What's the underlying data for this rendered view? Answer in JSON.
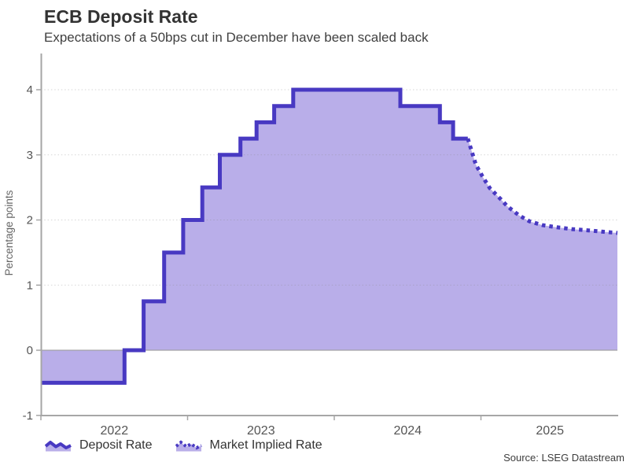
{
  "header": {
    "title": "ECB Deposit Rate",
    "subtitle": "Expectations of a 50bps cut in December have been scaled back"
  },
  "source": "Source: LSEG Datastream",
  "colors": {
    "line": "#4839c2",
    "fill": "#b9aee9",
    "axis": "#a6a6a6",
    "grid": "#8a8a8a",
    "zero_line": "#9e9e9e",
    "tick_text": "#555555",
    "axis_label_text": "#666666"
  },
  "legend": [
    {
      "label": "Deposit Rate",
      "style": "solid"
    },
    {
      "label": "Market Implied Rate",
      "style": "dotted"
    }
  ],
  "chart_data": {
    "type": "line",
    "title": "ECB Deposit Rate",
    "subtitle": "Expectations of a 50bps cut in December have been scaled back",
    "xlabel": "",
    "ylabel": "Percentage points",
    "xlim": [
      2022.0,
      2025.93
    ],
    "ylim": [
      -1,
      4.3
    ],
    "grid": "horizontal-dotted",
    "legend_position": "bottom",
    "y_ticks": [
      {
        "v": -1,
        "label": "-1"
      },
      {
        "v": 0,
        "label": "0"
      },
      {
        "v": 1,
        "label": "1"
      },
      {
        "v": 2,
        "label": "2"
      },
      {
        "v": 3,
        "label": "3"
      },
      {
        "v": 4,
        "label": "4"
      }
    ],
    "y_gridlines": [
      1,
      2,
      3,
      4
    ],
    "x_tick_boundaries": [
      2022,
      2023,
      2024,
      2025
    ],
    "x_year_labels": [
      {
        "t": 2022.5,
        "label": "2022"
      },
      {
        "t": 2023.5,
        "label": "2023"
      },
      {
        "t": 2024.5,
        "label": "2024"
      },
      {
        "t": 2025.47,
        "label": "2025"
      }
    ],
    "series": [
      {
        "name": "Deposit Rate",
        "type": "step",
        "line_style": "solid",
        "points": [
          {
            "t": 2022.005,
            "v": -0.5
          },
          {
            "t": 2022.57,
            "v": 0.0
          },
          {
            "t": 2022.7,
            "v": 0.75
          },
          {
            "t": 2022.84,
            "v": 1.5
          },
          {
            "t": 2022.97,
            "v": 2.0
          },
          {
            "t": 2023.1,
            "v": 2.5
          },
          {
            "t": 2023.22,
            "v": 3.0
          },
          {
            "t": 2023.36,
            "v": 3.25
          },
          {
            "t": 2023.47,
            "v": 3.5
          },
          {
            "t": 2023.59,
            "v": 3.75
          },
          {
            "t": 2023.72,
            "v": 4.0
          },
          {
            "t": 2024.45,
            "v": 3.75
          },
          {
            "t": 2024.72,
            "v": 3.5
          },
          {
            "t": 2024.81,
            "v": 3.25
          },
          {
            "t": 2024.91,
            "v": 3.25
          }
        ]
      },
      {
        "name": "Market Implied Rate",
        "type": "line",
        "line_style": "dotted",
        "points": [
          {
            "t": 2024.91,
            "v": 3.25
          },
          {
            "t": 2024.965,
            "v": 2.85
          },
          {
            "t": 2025.01,
            "v": 2.67
          },
          {
            "t": 2025.06,
            "v": 2.49
          },
          {
            "t": 2025.13,
            "v": 2.33
          },
          {
            "t": 2025.18,
            "v": 2.21
          },
          {
            "t": 2025.26,
            "v": 2.07
          },
          {
            "t": 2025.33,
            "v": 1.98
          },
          {
            "t": 2025.42,
            "v": 1.92
          },
          {
            "t": 2025.51,
            "v": 1.89
          },
          {
            "t": 2025.62,
            "v": 1.86
          },
          {
            "t": 2025.73,
            "v": 1.84
          },
          {
            "t": 2025.83,
            "v": 1.82
          },
          {
            "t": 2025.93,
            "v": 1.8
          }
        ]
      }
    ]
  }
}
